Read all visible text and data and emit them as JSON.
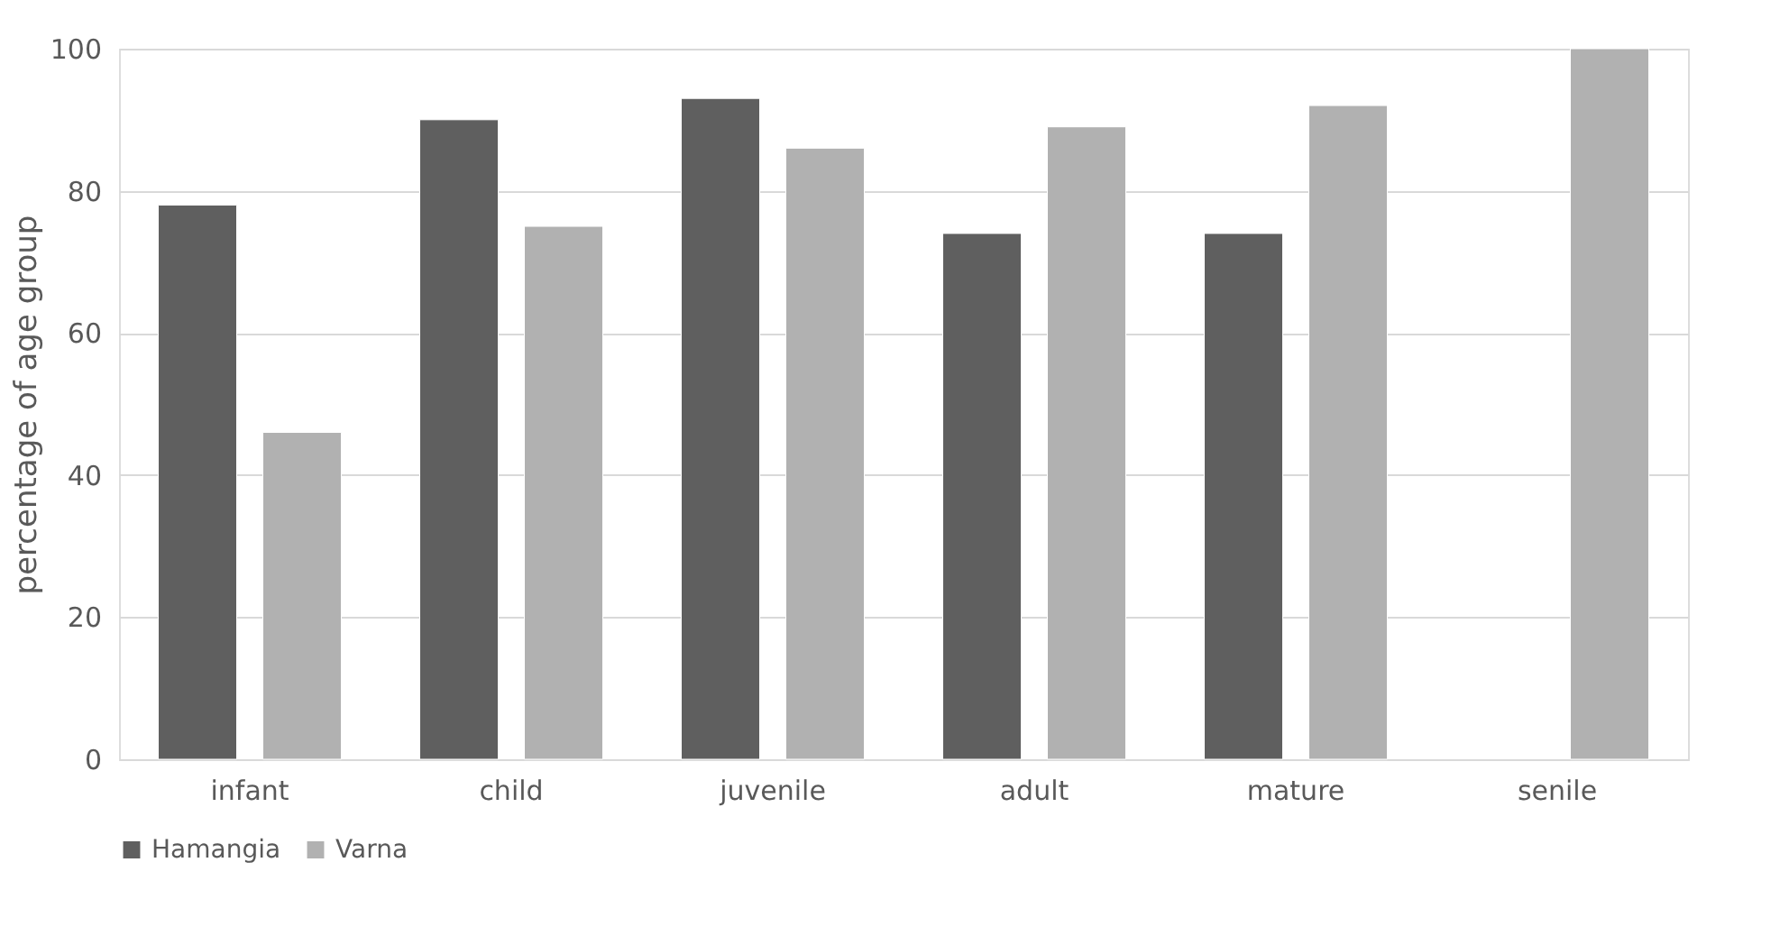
{
  "chart_data": {
    "type": "bar",
    "ylabel": "percentage of age group",
    "categories": [
      "infant",
      "child",
      "juvenile",
      "adult",
      "mature",
      "senile"
    ],
    "series": [
      {
        "name": "Hamangia",
        "color": "#5f5f5f",
        "values": [
          78,
          90,
          93,
          74,
          74,
          null
        ]
      },
      {
        "name": "Varna",
        "color": "#b1b1b1",
        "values": [
          46,
          75,
          86,
          89,
          92,
          100
        ]
      }
    ],
    "ylim": [
      0,
      100
    ],
    "yticks": [
      0,
      20,
      40,
      60,
      80,
      100
    ],
    "grid": "y",
    "legend": "bottom"
  }
}
